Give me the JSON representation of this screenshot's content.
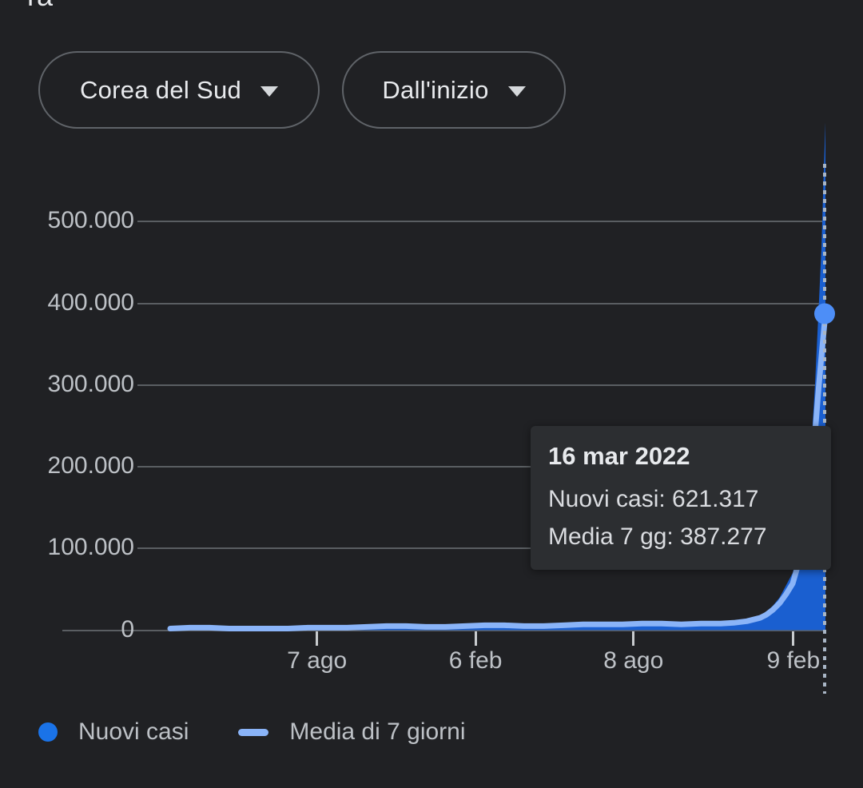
{
  "header": {
    "clipped_text": "ra"
  },
  "controls": {
    "region": {
      "label": "Corea del Sud"
    },
    "range": {
      "label": "Dall'inizio"
    }
  },
  "chart_data": {
    "type": "area",
    "title": "",
    "xlabel": "",
    "ylabel": "",
    "ylim": [
      0,
      540000
    ],
    "grid": "on",
    "legend_position": "bottom",
    "yticks": [
      {
        "label": "500.000",
        "value": 500000
      },
      {
        "label": "400.000",
        "value": 400000
      },
      {
        "label": "300.000",
        "value": 300000
      },
      {
        "label": "200.000",
        "value": 200000
      },
      {
        "label": "100.000",
        "value": 100000
      },
      {
        "label": "0",
        "value": 0
      }
    ],
    "xticks": [
      {
        "label": "7 ago",
        "t": 0.224
      },
      {
        "label": "6 feb",
        "t": 0.466
      },
      {
        "label": "8 ago",
        "t": 0.707
      },
      {
        "label": "9 feb",
        "t": 0.951
      }
    ],
    "series": [
      {
        "name": "Nuovi casi",
        "style": "area",
        "color": "#1a5fd0",
        "points": [
          [
            0,
            1000
          ],
          [
            0.02,
            5000
          ],
          [
            0.04,
            3000
          ],
          [
            0.06,
            2000
          ],
          [
            0.09,
            1500
          ],
          [
            0.12,
            1500
          ],
          [
            0.15,
            2000
          ],
          [
            0.18,
            2500
          ],
          [
            0.21,
            3500
          ],
          [
            0.24,
            3000
          ],
          [
            0.27,
            3500
          ],
          [
            0.3,
            5000
          ],
          [
            0.33,
            6500
          ],
          [
            0.36,
            5500
          ],
          [
            0.39,
            4500
          ],
          [
            0.42,
            5000
          ],
          [
            0.45,
            6500
          ],
          [
            0.48,
            7500
          ],
          [
            0.51,
            6500
          ],
          [
            0.54,
            5500
          ],
          [
            0.57,
            6000
          ],
          [
            0.6,
            7500
          ],
          [
            0.63,
            9000
          ],
          [
            0.66,
            8000
          ],
          [
            0.69,
            8500
          ],
          [
            0.72,
            10000
          ],
          [
            0.75,
            9000
          ],
          [
            0.78,
            8000
          ],
          [
            0.81,
            9500
          ],
          [
            0.84,
            10000
          ],
          [
            0.86,
            11000
          ],
          [
            0.88,
            14000
          ],
          [
            0.9,
            18000
          ],
          [
            0.91,
            23000
          ],
          [
            0.92,
            30000
          ],
          [
            0.93,
            40000
          ],
          [
            0.94,
            55000
          ],
          [
            0.95,
            70000
          ],
          [
            0.958,
            95000
          ],
          [
            0.965,
            125000
          ],
          [
            0.972,
            170000
          ],
          [
            0.978,
            220000
          ],
          [
            0.984,
            300000
          ],
          [
            0.99,
            400000
          ],
          [
            0.994,
            470000
          ],
          [
            0.997,
            550000
          ],
          [
            1,
            621317
          ]
        ]
      },
      {
        "name": "Media di 7 giorni",
        "style": "line",
        "color": "#8ab4f8",
        "points": [
          [
            0,
            2000
          ],
          [
            0.03,
            3000
          ],
          [
            0.06,
            3000
          ],
          [
            0.09,
            2000
          ],
          [
            0.12,
            2000
          ],
          [
            0.15,
            2000
          ],
          [
            0.18,
            2000
          ],
          [
            0.21,
            3000
          ],
          [
            0.24,
            3000
          ],
          [
            0.27,
            3000
          ],
          [
            0.3,
            4000
          ],
          [
            0.33,
            5000
          ],
          [
            0.36,
            5000
          ],
          [
            0.39,
            4000
          ],
          [
            0.42,
            4000
          ],
          [
            0.45,
            5000
          ],
          [
            0.48,
            6000
          ],
          [
            0.51,
            6000
          ],
          [
            0.54,
            5000
          ],
          [
            0.57,
            5000
          ],
          [
            0.6,
            6000
          ],
          [
            0.63,
            7000
          ],
          [
            0.66,
            7000
          ],
          [
            0.69,
            7000
          ],
          [
            0.72,
            8000
          ],
          [
            0.75,
            8000
          ],
          [
            0.78,
            7000
          ],
          [
            0.81,
            8000
          ],
          [
            0.84,
            8000
          ],
          [
            0.86,
            9000
          ],
          [
            0.88,
            11000
          ],
          [
            0.9,
            15000
          ],
          [
            0.91,
            19000
          ],
          [
            0.92,
            25000
          ],
          [
            0.93,
            33000
          ],
          [
            0.94,
            44000
          ],
          [
            0.95,
            57000
          ],
          [
            0.96,
            85000
          ],
          [
            0.97,
            130000
          ],
          [
            0.975,
            160000
          ],
          [
            0.98,
            200000
          ],
          [
            0.985,
            250000
          ],
          [
            0.99,
            300000
          ],
          [
            0.995,
            345000
          ],
          [
            1,
            387277
          ]
        ]
      }
    ],
    "marker": {
      "series": "Media di 7 giorni",
      "t": 1,
      "value": 387277,
      "color": "#4d8ef7"
    },
    "crosshair": {
      "t": 1,
      "style": "dotted",
      "color": "#a9b6c6"
    },
    "tooltip": {
      "title": "16 mar 2022",
      "line1": "Nuovi casi: 621.317",
      "line2": "Media 7 gg: 387.277",
      "values": {
        "nuovi_casi": 621317,
        "media_7_gg": 387277
      }
    },
    "legend": [
      {
        "label": "Nuovi casi",
        "swatch": "dot",
        "color": "#1a73e8"
      },
      {
        "label": "Media di 7 giorni",
        "swatch": "line",
        "color": "#8ab4f8"
      }
    ],
    "colors": {
      "background": "#202124",
      "grid": "#5a5e62",
      "axis_text": "#bdc1c6",
      "text_primary": "#e8eaed",
      "tooltip_bg": "#2c2e31"
    }
  }
}
